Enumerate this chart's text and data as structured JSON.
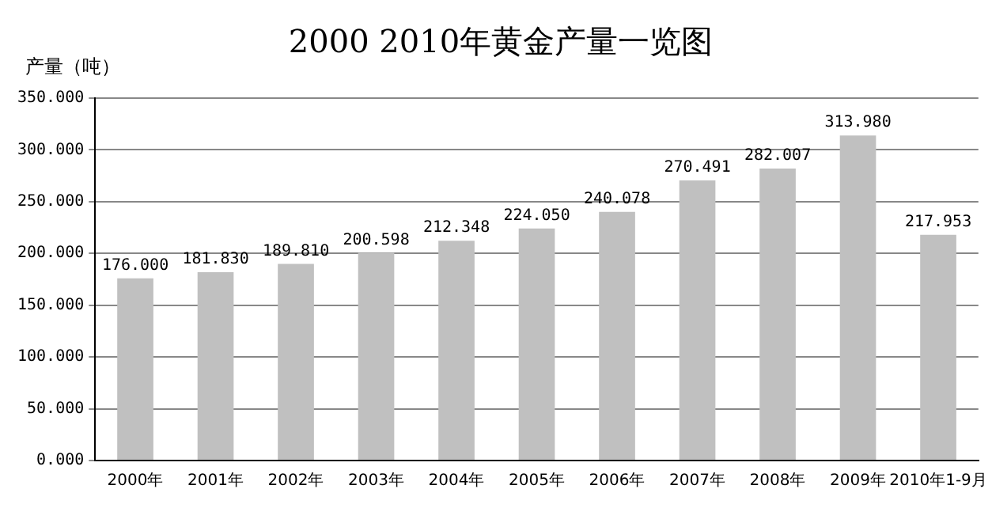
{
  "chart_data": {
    "type": "bar",
    "title": "2000 2010年黄金产量一览图",
    "ylabel": "产量（吨）",
    "categories": [
      "2000年",
      "2001年",
      "2002年",
      "2003年",
      "2004年",
      "2005年",
      "2006年",
      "2007年",
      "2008年",
      "2009年",
      "2010年1-9月"
    ],
    "values": [
      176.0,
      181.83,
      189.81,
      200.598,
      212.348,
      224.05,
      240.078,
      270.491,
      282.007,
      313.98,
      217.953
    ],
    "value_labels": [
      "176.000",
      "181.830",
      "189.810",
      "200.598",
      "212.348",
      "224.050",
      "240.078",
      "270.491",
      "282.007",
      "313.980",
      "217.953"
    ],
    "color": "#c0c0c0",
    "ylim": [
      0,
      350
    ],
    "yticks": [
      {
        "value": 0,
        "label": "0.000"
      },
      {
        "value": 50,
        "label": "50.000"
      },
      {
        "value": 100,
        "label": "100.000"
      },
      {
        "value": 150,
        "label": "150.000"
      },
      {
        "value": 200,
        "label": "200.000"
      },
      {
        "value": 250,
        "label": "250.000"
      },
      {
        "value": 300,
        "label": "300.000"
      },
      {
        "value": 350,
        "label": "350.000"
      }
    ],
    "grid": "y"
  }
}
